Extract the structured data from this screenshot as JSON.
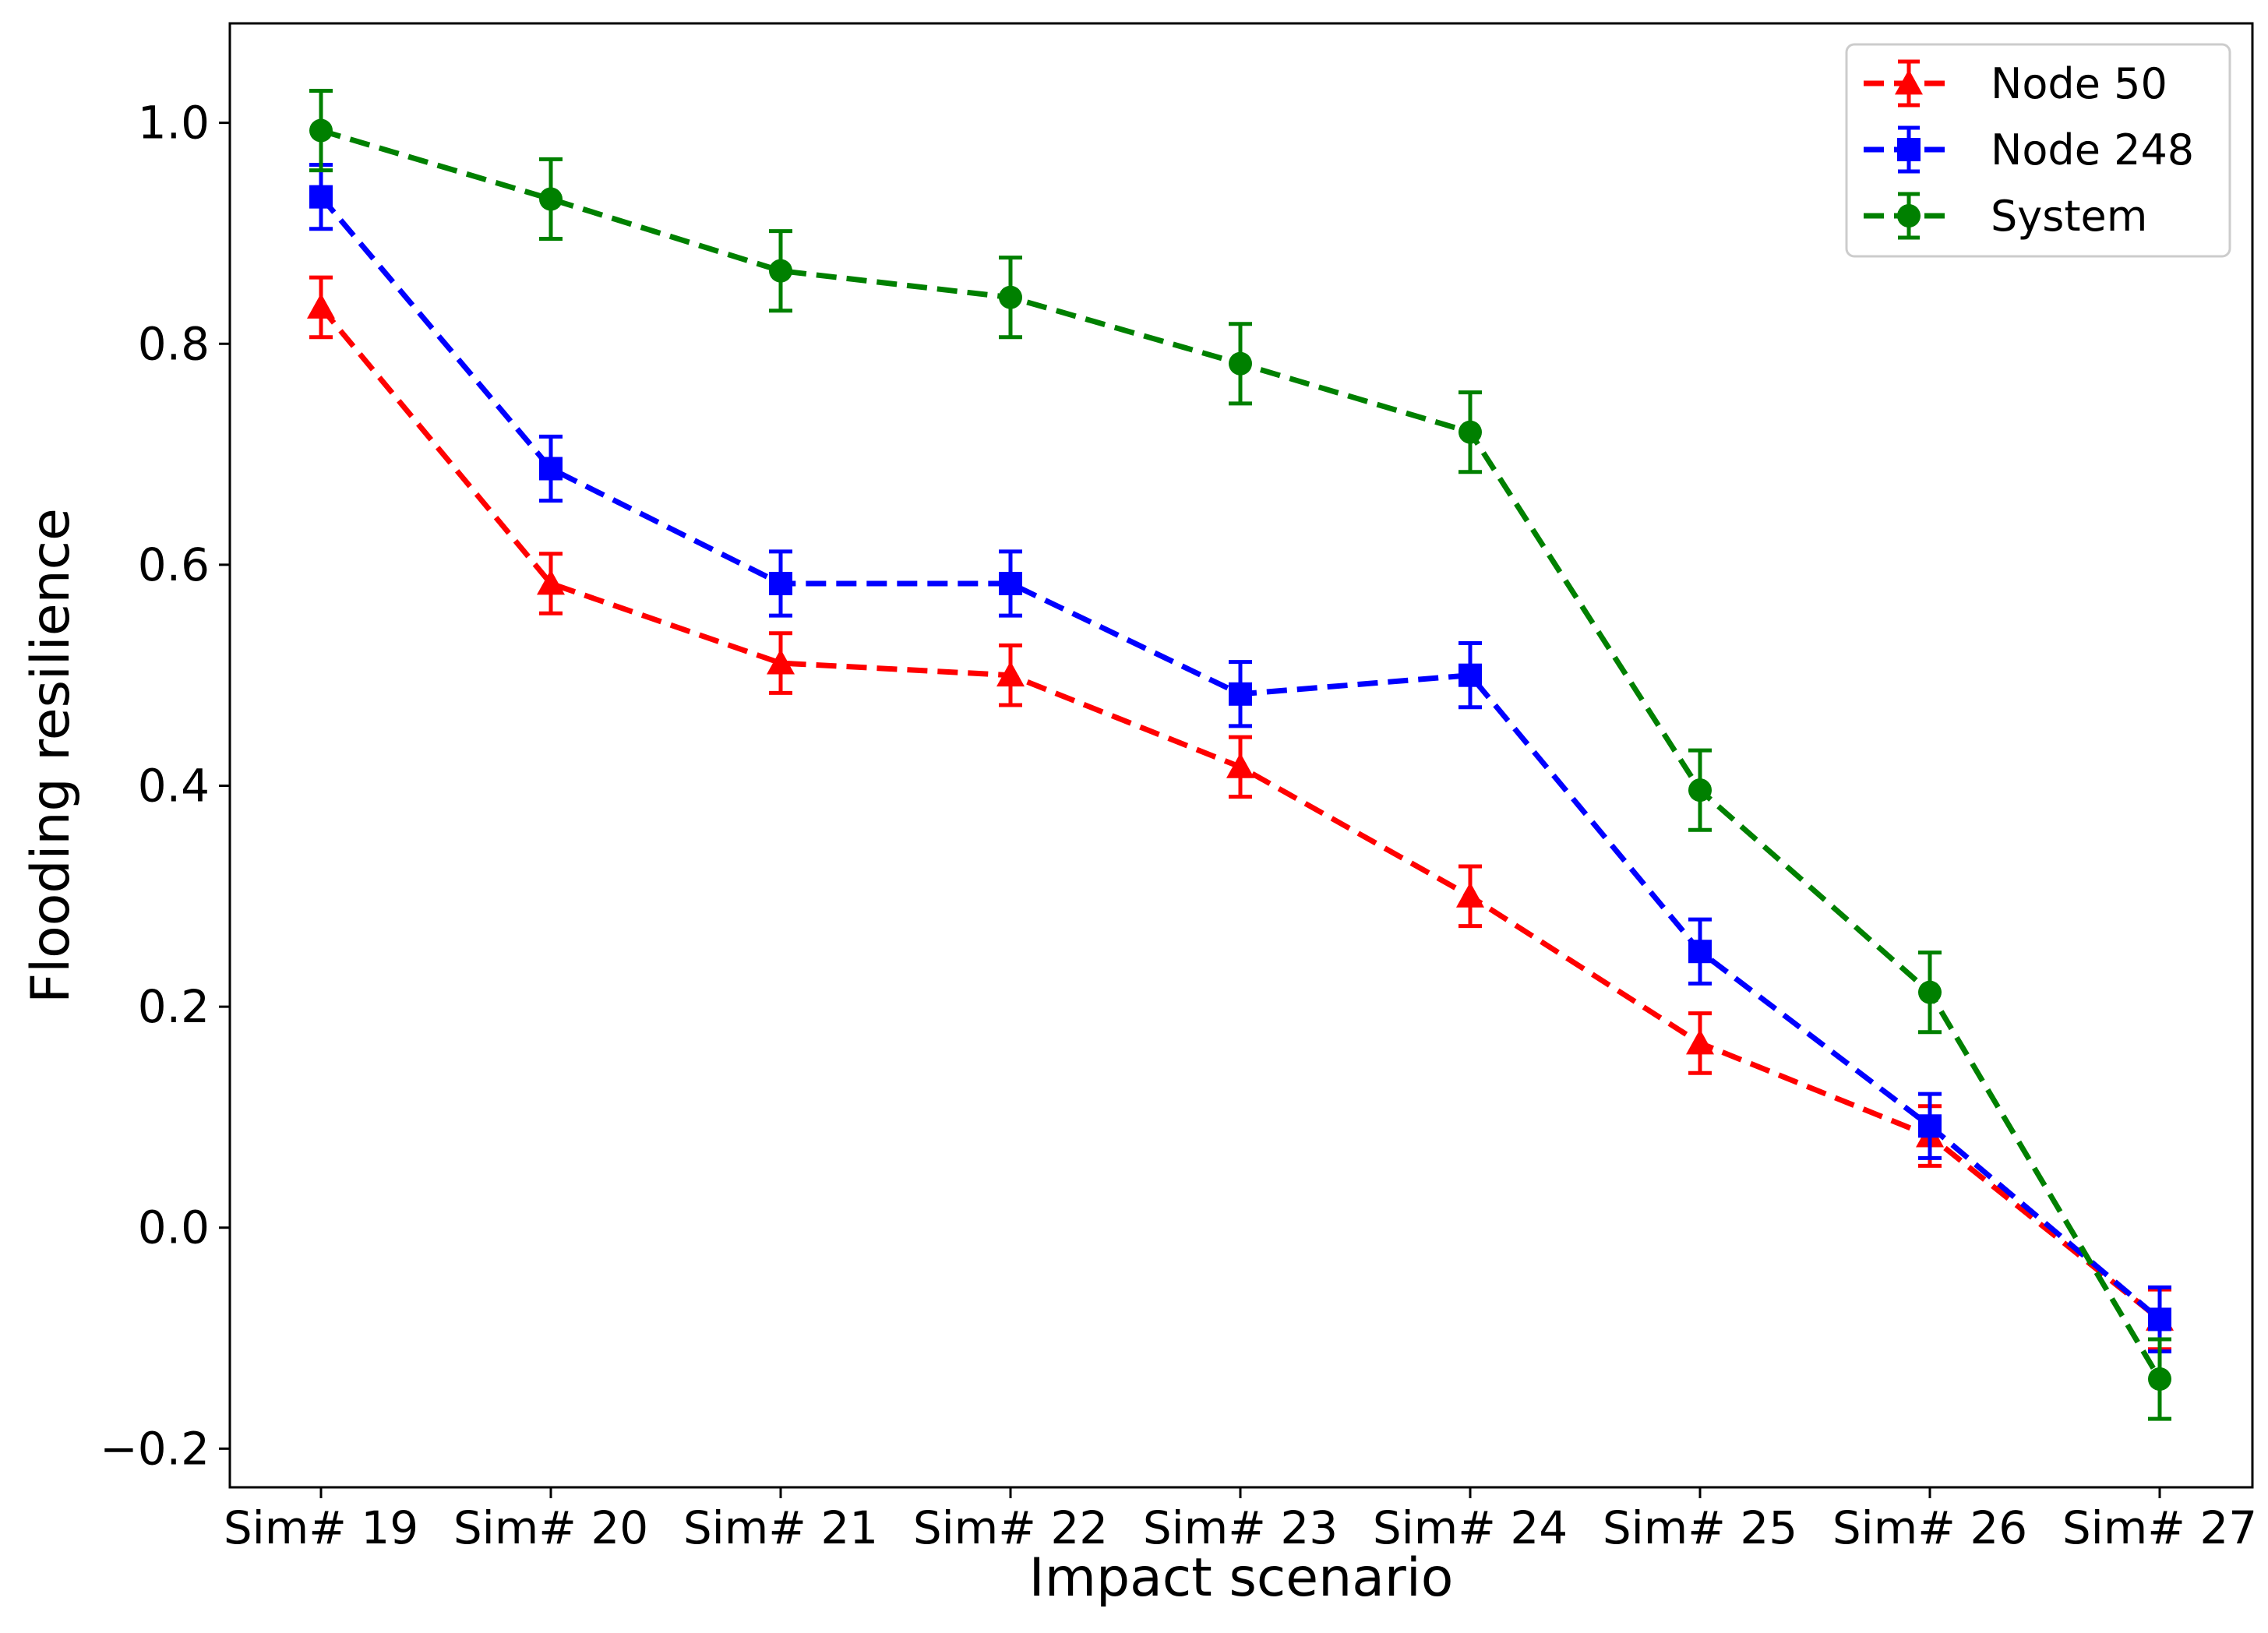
{
  "chart_data": {
    "type": "line",
    "xlabel": "Impact scenario",
    "ylabel": "Flooding resilience",
    "categories": [
      "Sim# 19",
      "Sim# 20",
      "Sim# 21",
      "Sim# 22",
      "Sim# 23",
      "Sim# 24",
      "Sim# 25",
      "Sim# 26",
      "Sim# 27"
    ],
    "ylim": [
      -0.235,
      1.09
    ],
    "yticks": [
      -0.2,
      0.0,
      0.2,
      0.4,
      0.6,
      0.8,
      1.0
    ],
    "ytick_labels": [
      "−0.2",
      "0.0",
      "0.2",
      "0.4",
      "0.6",
      "0.8",
      "1.0"
    ],
    "grid": false,
    "legend_position": "top-right",
    "line_style": "dashed",
    "series": [
      {
        "name": "Node 50",
        "color": "#ff0000",
        "marker": "triangle",
        "values": [
          0.833,
          0.583,
          0.511,
          0.5,
          0.417,
          0.3,
          0.167,
          0.083,
          -0.083
        ],
        "errors": [
          0.027,
          0.027,
          0.027,
          0.027,
          0.027,
          0.027,
          0.027,
          0.027,
          0.027
        ]
      },
      {
        "name": "Node 248",
        "color": "#0000ff",
        "marker": "square",
        "values": [
          0.933,
          0.687,
          0.583,
          0.583,
          0.483,
          0.5,
          0.25,
          0.092,
          -0.083
        ],
        "errors": [
          0.029,
          0.029,
          0.029,
          0.029,
          0.029,
          0.029,
          0.029,
          0.029,
          0.029
        ]
      },
      {
        "name": "System",
        "color": "#008000",
        "marker": "circle",
        "values": [
          0.993,
          0.931,
          0.866,
          0.842,
          0.782,
          0.72,
          0.396,
          0.213,
          -0.137
        ],
        "errors": [
          0.036,
          0.036,
          0.036,
          0.036,
          0.036,
          0.036,
          0.036,
          0.036,
          0.036
        ]
      }
    ]
  }
}
